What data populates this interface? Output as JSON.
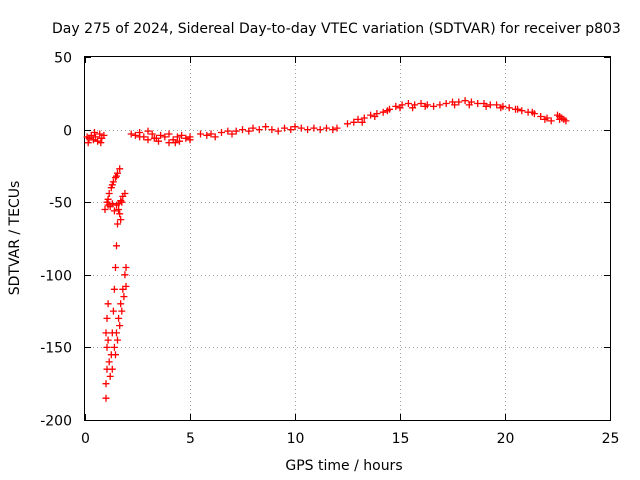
{
  "chart_data": {
    "type": "scatter",
    "title": "Day 275 of 2024, Sidereal Day-to-day VTEC variation (SDTVAR) for receiver p803",
    "xlabel": "GPS time / hours",
    "ylabel": "SDTVAR / TECUs",
    "xlim": [
      0,
      25
    ],
    "ylim": [
      -200,
      50
    ],
    "xticks": [
      0,
      5,
      10,
      15,
      20,
      25
    ],
    "yticks": [
      -200,
      -150,
      -100,
      -50,
      0,
      50
    ],
    "grid": true,
    "marker": "plus",
    "color": "#ff0000",
    "series": [
      {
        "name": "SDTVAR",
        "points": [
          [
            0.1,
            -5
          ],
          [
            0.2,
            -6
          ],
          [
            0.3,
            -4
          ],
          [
            0.4,
            -7
          ],
          [
            0.5,
            -5
          ],
          [
            0.6,
            -8
          ],
          [
            0.7,
            -3
          ],
          [
            0.8,
            -6
          ],
          [
            0.9,
            -4
          ],
          [
            0.15,
            -9
          ],
          [
            0.45,
            -2
          ],
          [
            0.75,
            -9
          ],
          [
            0.95,
            -55
          ],
          [
            1.05,
            -50
          ],
          [
            1.15,
            -44
          ],
          [
            1.25,
            -40
          ],
          [
            1.35,
            -36
          ],
          [
            1.45,
            -33
          ],
          [
            1.55,
            -30
          ],
          [
            1.65,
            -27
          ],
          [
            1.1,
            -48
          ],
          [
            1.3,
            -38
          ],
          [
            1.5,
            -32
          ],
          [
            1.1,
            -52
          ],
          [
            1.2,
            -53
          ],
          [
            1.3,
            -51
          ],
          [
            1.4,
            -56
          ],
          [
            1.5,
            -52
          ],
          [
            1.6,
            -51
          ],
          [
            1.7,
            -49
          ],
          [
            1.8,
            -46
          ],
          [
            1.9,
            -44
          ],
          [
            1.0,
            -185
          ],
          [
            1.0,
            -175
          ],
          [
            1.05,
            -165
          ],
          [
            1.05,
            -150
          ],
          [
            1.0,
            -140
          ],
          [
            1.05,
            -130
          ],
          [
            1.1,
            -120
          ],
          [
            1.15,
            -160
          ],
          [
            1.1,
            -145
          ],
          [
            1.2,
            -170
          ],
          [
            1.25,
            -155
          ],
          [
            1.3,
            -140
          ],
          [
            1.35,
            -125
          ],
          [
            1.4,
            -110
          ],
          [
            1.45,
            -95
          ],
          [
            1.5,
            -80
          ],
          [
            1.55,
            -65
          ],
          [
            1.6,
            -55
          ],
          [
            1.65,
            -58
          ],
          [
            1.7,
            -62
          ],
          [
            1.75,
            -50
          ],
          [
            1.3,
            -165
          ],
          [
            1.4,
            -150
          ],
          [
            1.5,
            -140
          ],
          [
            1.6,
            -130
          ],
          [
            1.7,
            -120
          ],
          [
            1.8,
            -110
          ],
          [
            1.9,
            -100
          ],
          [
            1.95,
            -95
          ],
          [
            1.45,
            -155
          ],
          [
            1.55,
            -145
          ],
          [
            1.65,
            -135
          ],
          [
            1.75,
            -125
          ],
          [
            1.85,
            -115
          ],
          [
            1.95,
            -108
          ],
          [
            2.2,
            -3
          ],
          [
            2.4,
            -4
          ],
          [
            2.6,
            -2
          ],
          [
            2.8,
            -5
          ],
          [
            3.0,
            -1
          ],
          [
            3.2,
            -3
          ],
          [
            3.4,
            -6
          ],
          [
            3.6,
            -4
          ],
          [
            3.8,
            -5
          ],
          [
            4.0,
            -3
          ],
          [
            4.2,
            -7
          ],
          [
            4.4,
            -5
          ],
          [
            4.6,
            -4
          ],
          [
            4.8,
            -6
          ],
          [
            5.0,
            -5
          ],
          [
            3.0,
            -7
          ],
          [
            3.5,
            -8
          ],
          [
            4.0,
            -9
          ],
          [
            4.5,
            -8
          ],
          [
            5.0,
            -7
          ],
          [
            2.6,
            -5
          ],
          [
            3.3,
            -6
          ],
          [
            4.3,
            -9
          ],
          [
            5.5,
            -3
          ],
          [
            5.8,
            -4
          ],
          [
            6.0,
            -3
          ],
          [
            6.2,
            -5
          ],
          [
            6.5,
            -2
          ],
          [
            6.8,
            -1
          ],
          [
            7.0,
            -3
          ],
          [
            7.2,
            -1
          ],
          [
            7.5,
            0
          ],
          [
            7.8,
            -1
          ],
          [
            8.0,
            1
          ],
          [
            8.3,
            0
          ],
          [
            8.6,
            2
          ],
          [
            8.9,
            0
          ],
          [
            9.2,
            -1
          ],
          [
            9.5,
            1
          ],
          [
            9.8,
            0
          ],
          [
            10.0,
            2
          ],
          [
            10.3,
            1
          ],
          [
            10.6,
            0
          ],
          [
            10.9,
            1
          ],
          [
            11.2,
            0
          ],
          [
            11.5,
            1
          ],
          [
            11.8,
            0
          ],
          [
            12.0,
            1
          ],
          [
            12.5,
            4
          ],
          [
            12.8,
            5
          ],
          [
            13.0,
            7
          ],
          [
            13.3,
            8
          ],
          [
            13.6,
            10
          ],
          [
            13.9,
            11
          ],
          [
            14.2,
            12
          ],
          [
            14.5,
            14
          ],
          [
            14.8,
            16
          ],
          [
            15.1,
            17
          ],
          [
            15.4,
            18
          ],
          [
            15.7,
            17
          ],
          [
            16.0,
            18
          ],
          [
            16.3,
            17
          ],
          [
            16.6,
            16
          ],
          [
            16.9,
            17
          ],
          [
            13.2,
            5
          ],
          [
            13.8,
            9
          ],
          [
            14.4,
            13
          ],
          [
            15.0,
            15
          ],
          [
            15.6,
            15
          ],
          [
            16.2,
            16
          ],
          [
            17.2,
            18
          ],
          [
            17.5,
            19
          ],
          [
            17.8,
            19
          ],
          [
            18.1,
            20
          ],
          [
            18.4,
            19
          ],
          [
            18.7,
            18
          ],
          [
            19.0,
            18
          ],
          [
            19.3,
            17
          ],
          [
            19.6,
            17
          ],
          [
            19.9,
            16
          ],
          [
            20.2,
            15
          ],
          [
            20.5,
            14
          ],
          [
            20.8,
            13
          ],
          [
            21.1,
            12
          ],
          [
            21.4,
            11
          ],
          [
            21.7,
            9
          ],
          [
            22.0,
            8
          ],
          [
            22.2,
            6
          ],
          [
            17.6,
            17
          ],
          [
            18.3,
            17
          ],
          [
            19.1,
            16
          ],
          [
            19.8,
            15
          ],
          [
            20.6,
            14
          ],
          [
            21.3,
            12
          ],
          [
            21.9,
            7
          ],
          [
            22.5,
            10
          ],
          [
            22.6,
            9
          ],
          [
            22.7,
            8
          ],
          [
            22.8,
            7
          ],
          [
            22.9,
            6
          ],
          [
            22.6,
            7
          ]
        ]
      }
    ]
  }
}
